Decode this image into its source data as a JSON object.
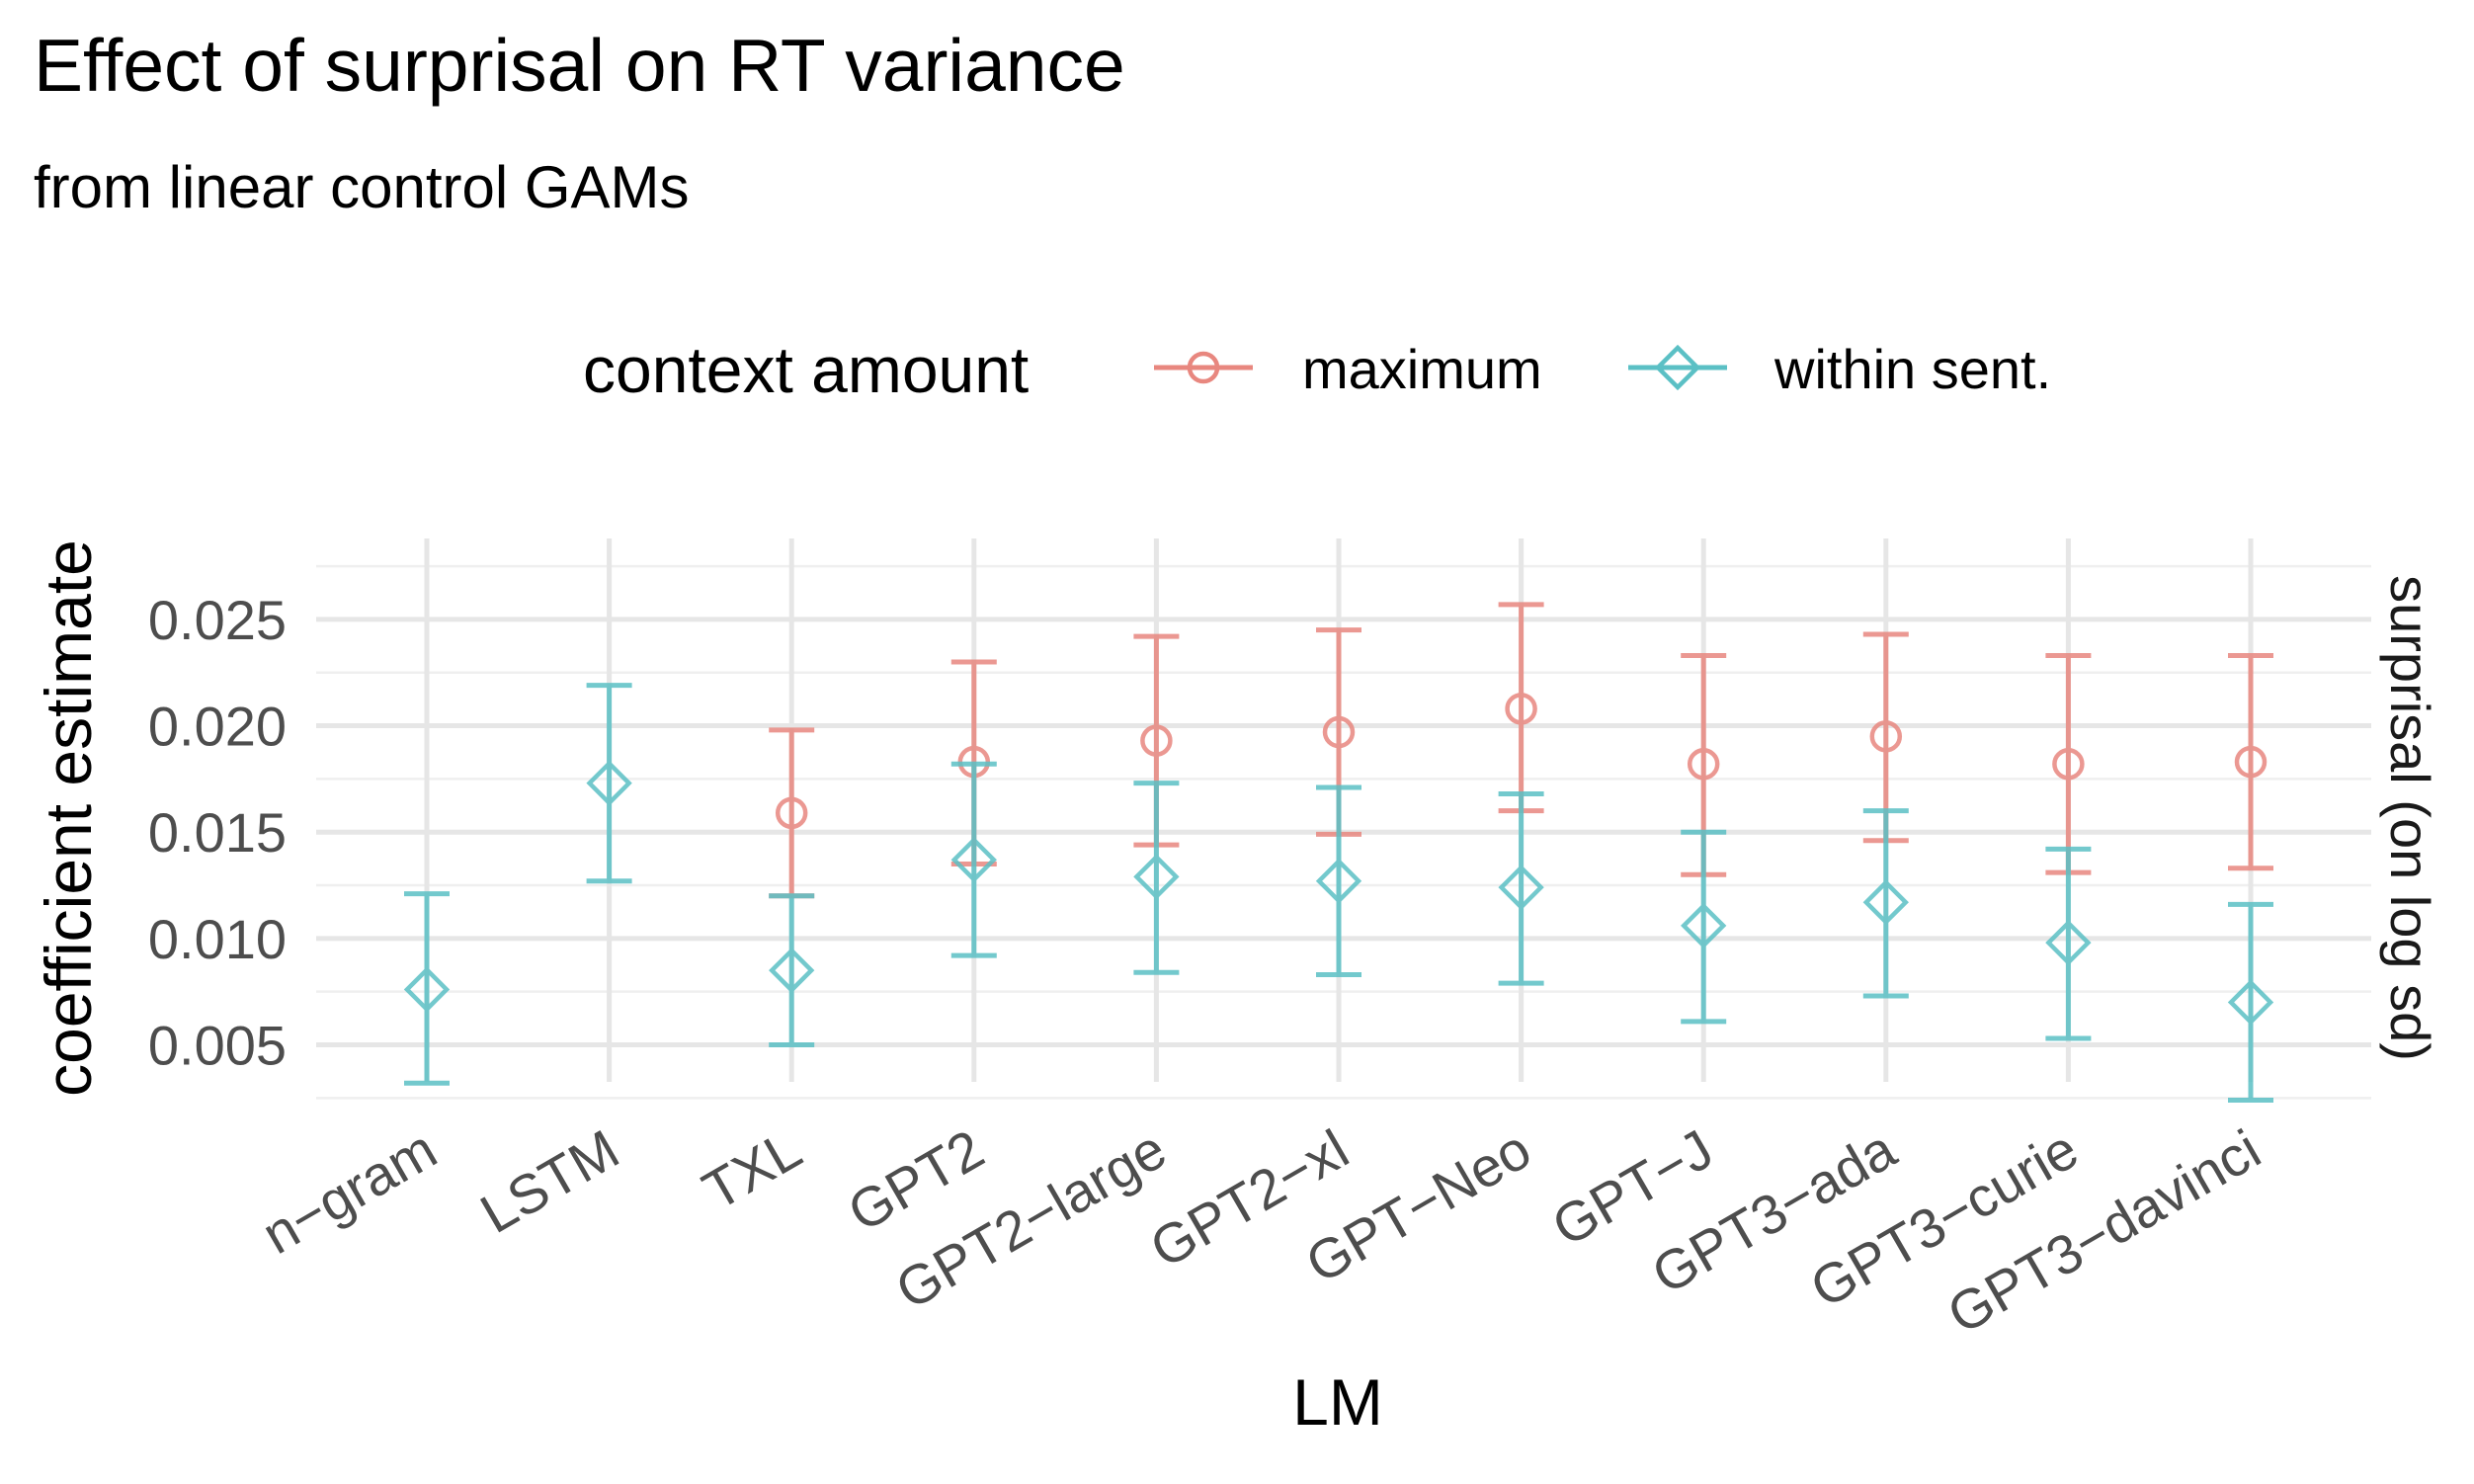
{
  "chart_data": {
    "type": "errorbar",
    "title": "Effect of surprisal on RT variance",
    "subtitle": "from linear control GAMs",
    "xlabel": "LM",
    "ylabel": "coefficient estimate",
    "strip_label": "surprisal (on log sd)",
    "ylim": [
      0.0015,
      0.028
    ],
    "yticks": [
      "0.005",
      "0.010",
      "0.015",
      "0.020",
      "0.025"
    ],
    "ytick_values": [
      0.005,
      0.01,
      0.015,
      0.02,
      0.025
    ],
    "grid": true,
    "legend": {
      "title": "context amount",
      "position": "top"
    },
    "categories": [
      "n−gram",
      "LSTM",
      "TXL",
      "GPT2",
      "GPT2−large",
      "GPT2−xl",
      "GPT−Neo",
      "GPT−J",
      "GPT3−ada",
      "GPT3−curie",
      "GPT3−davinci"
    ],
    "series": [
      {
        "name": "maximum",
        "color": "#E8877F",
        "marker": "circle",
        "values": [
          null,
          null,
          0.0159,
          0.0183,
          0.0193,
          0.0197,
          0.0208,
          0.0182,
          0.0195,
          0.0182,
          0.0183
        ],
        "lower": [
          null,
          null,
          0.012,
          0.0135,
          0.0144,
          0.0149,
          0.016,
          0.013,
          0.0146,
          0.0131,
          0.0133
        ],
        "upper": [
          null,
          null,
          0.0198,
          0.023,
          0.0242,
          0.0245,
          0.0257,
          0.0233,
          0.0243,
          0.0233,
          0.0233
        ]
      },
      {
        "name": "within sent.",
        "color": "#5BC0C5",
        "marker": "diamond",
        "values": [
          0.0076,
          0.0173,
          0.0085,
          0.0137,
          0.0129,
          0.0127,
          0.0124,
          0.0106,
          0.0117,
          0.0098,
          0.007
        ],
        "lower": [
          0.0032,
          0.0127,
          0.005,
          0.0092,
          0.0084,
          0.0083,
          0.0079,
          0.0061,
          0.0073,
          0.0053,
          0.0024
        ],
        "upper": [
          0.0121,
          0.0219,
          0.012,
          0.0182,
          0.0173,
          0.0171,
          0.0168,
          0.015,
          0.016,
          0.0142,
          0.0116
        ]
      }
    ]
  }
}
